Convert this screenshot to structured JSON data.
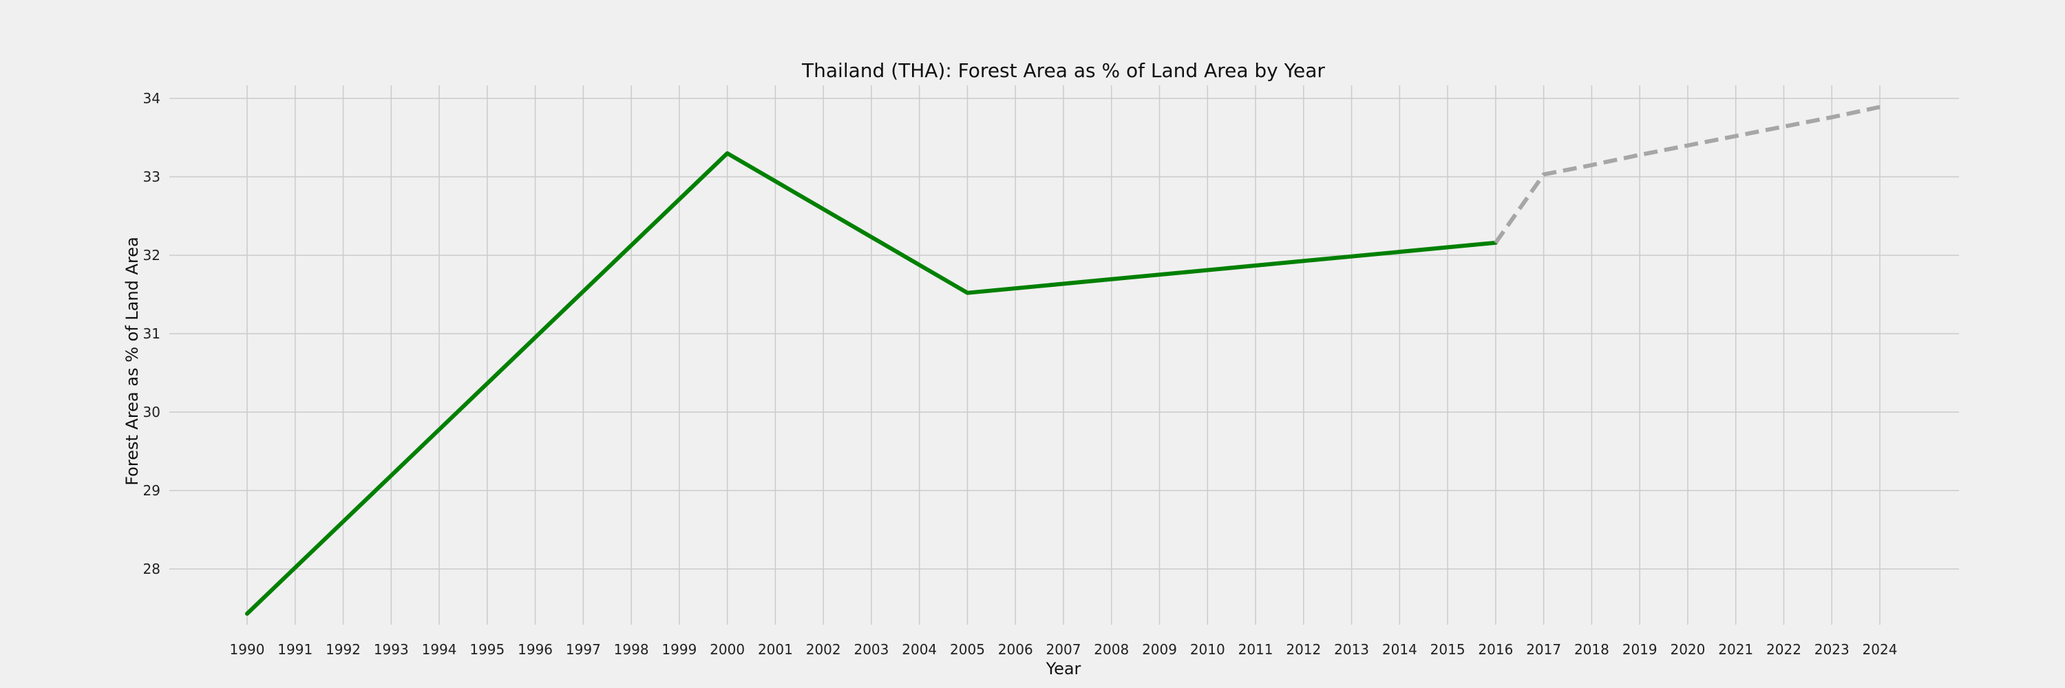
{
  "chart_data": {
    "type": "line",
    "title": "Thailand (THA): Forest Area as % of Land Area by Year",
    "xlabel": "Year",
    "ylabel": "Forest Area as % of Land Area",
    "x": [
      1990,
      1991,
      1992,
      1993,
      1994,
      1995,
      1996,
      1997,
      1998,
      1999,
      2000,
      2001,
      2002,
      2003,
      2004,
      2005,
      2006,
      2007,
      2008,
      2009,
      2010,
      2011,
      2012,
      2013,
      2014,
      2015,
      2016,
      2017,
      2018,
      2019,
      2020,
      2021,
      2022,
      2023,
      2024
    ],
    "x_ticks": [
      "1990",
      "1991",
      "1992",
      "1993",
      "1994",
      "1995",
      "1996",
      "1997",
      "1998",
      "1999",
      "2000",
      "2001",
      "2002",
      "2003",
      "2004",
      "2005",
      "2006",
      "2007",
      "2008",
      "2009",
      "2010",
      "2011",
      "2012",
      "2013",
      "2014",
      "2015",
      "2016",
      "2017",
      "2018",
      "2019",
      "2020",
      "2021",
      "2022",
      "2023",
      "2024"
    ],
    "y_ticks": [
      "28",
      "29",
      "30",
      "31",
      "32",
      "33",
      "34"
    ],
    "ylim": [
      27.05,
      34.2
    ],
    "grid": true,
    "series": [
      {
        "style": "solid",
        "color": "#008000",
        "x": [
          1990,
          2000,
          2005,
          2016
        ],
        "y": [
          27.43,
          33.3,
          31.52,
          32.16
        ]
      },
      {
        "style": "dashed",
        "color": "#a6a6a6",
        "x": [
          2016,
          2017,
          2018,
          2019,
          2020,
          2021,
          2022,
          2023,
          2024
        ],
        "y": [
          32.16,
          33.03,
          33.15,
          33.28,
          33.4,
          33.52,
          33.64,
          33.76,
          33.89
        ]
      }
    ]
  }
}
